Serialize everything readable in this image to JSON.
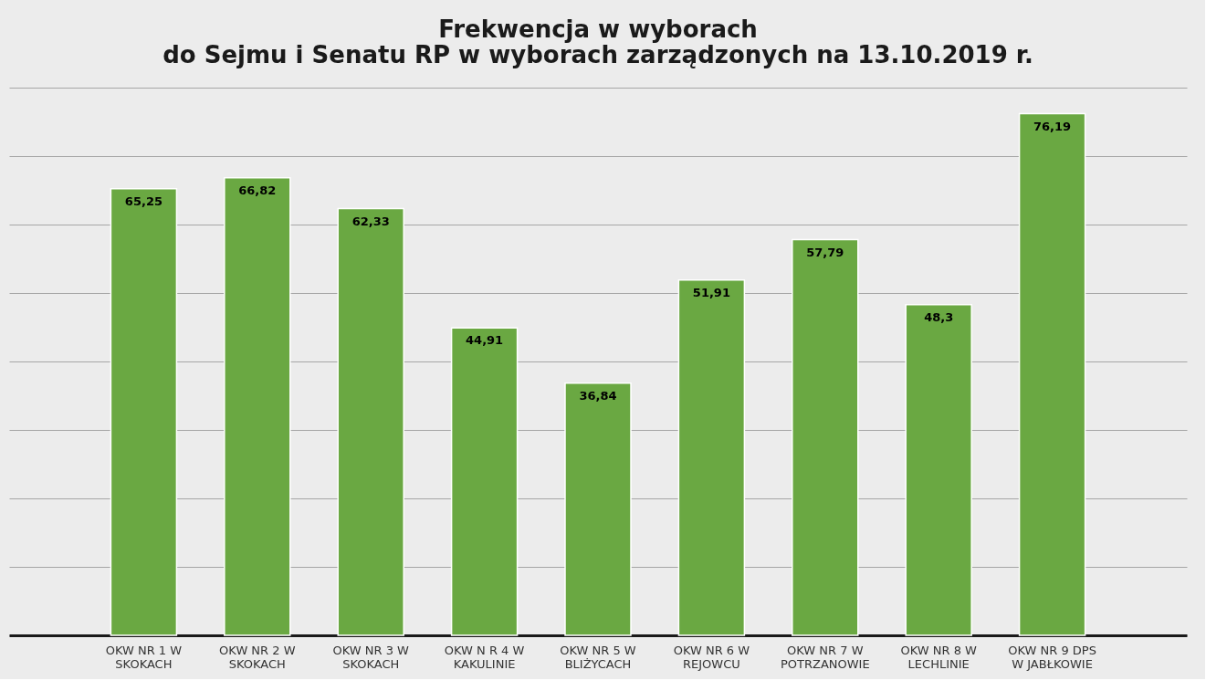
{
  "chart_data": {
    "type": "bar",
    "title": [
      "Frekwencja w wyborach",
      "do Sejmu i Senatu RP w wyborach zarządzonych na 13.10.2019 r."
    ],
    "categories": [
      "OKW NR 1 W SKOKACH",
      "OKW NR 2 W SKOKACH",
      "OKW NR 3 W SKOKACH",
      "OKW N R 4 W KAKULINIE",
      "OKW NR 5 W BLIŻYCACH",
      "OKW NR 6 W REJOWCU",
      "OKW NR 7 W POTRZANOWIE",
      "OKW NR 8 W LECHLINIE",
      "OKW NR 9 DPS W JABŁKOWIE"
    ],
    "values": [
      65.25,
      66.82,
      62.33,
      44.91,
      36.84,
      51.91,
      57.79,
      48.3,
      76.19
    ],
    "color": "#6aa842",
    "ylim": [
      0,
      80
    ],
    "yticks": [
      {
        "value": 0,
        "label": null
      },
      {
        "value": 10,
        "label": null
      },
      {
        "value": 20,
        "label": null
      },
      {
        "value": 30,
        "label": null
      },
      {
        "value": 40,
        "label": null
      },
      {
        "value": 50,
        "label": null
      },
      {
        "value": 60,
        "label": null
      },
      {
        "value": 70,
        "label": null
      },
      {
        "value": 80,
        "label": null
      }
    ],
    "tick_labels": "x",
    "grid": "y",
    "value_labels": [
      "65,25",
      "66,82",
      "62,33",
      "44,91",
      "36,84",
      "51,91",
      "57,79",
      "48,3",
      "76,19"
    ]
  }
}
